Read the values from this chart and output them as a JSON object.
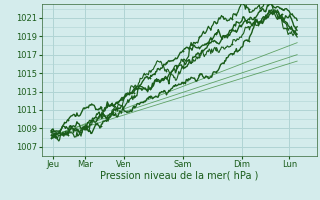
{
  "title": "Pression niveau de la mer( hPa )",
  "ylabel_ticks": [
    1007,
    1009,
    1011,
    1013,
    1015,
    1017,
    1019,
    1021
  ],
  "ylim": [
    1006.0,
    1022.5
  ],
  "xlim": [
    0.0,
    7.0
  ],
  "day_positions": [
    0.3,
    1.1,
    2.1,
    3.6,
    5.1,
    6.3
  ],
  "day_labels": [
    "Jeu",
    "Mar",
    "Ven",
    "Sam",
    "Dim",
    "Lun"
  ],
  "background_color": "#d4ecec",
  "grid_color": "#b0d4d4",
  "line_color_dark": "#1a5c1a",
  "line_color_mid": "#2a7a2a",
  "line_color_thin": "#3a8a3a",
  "tick_label_size": 6,
  "xlabel_size": 7
}
